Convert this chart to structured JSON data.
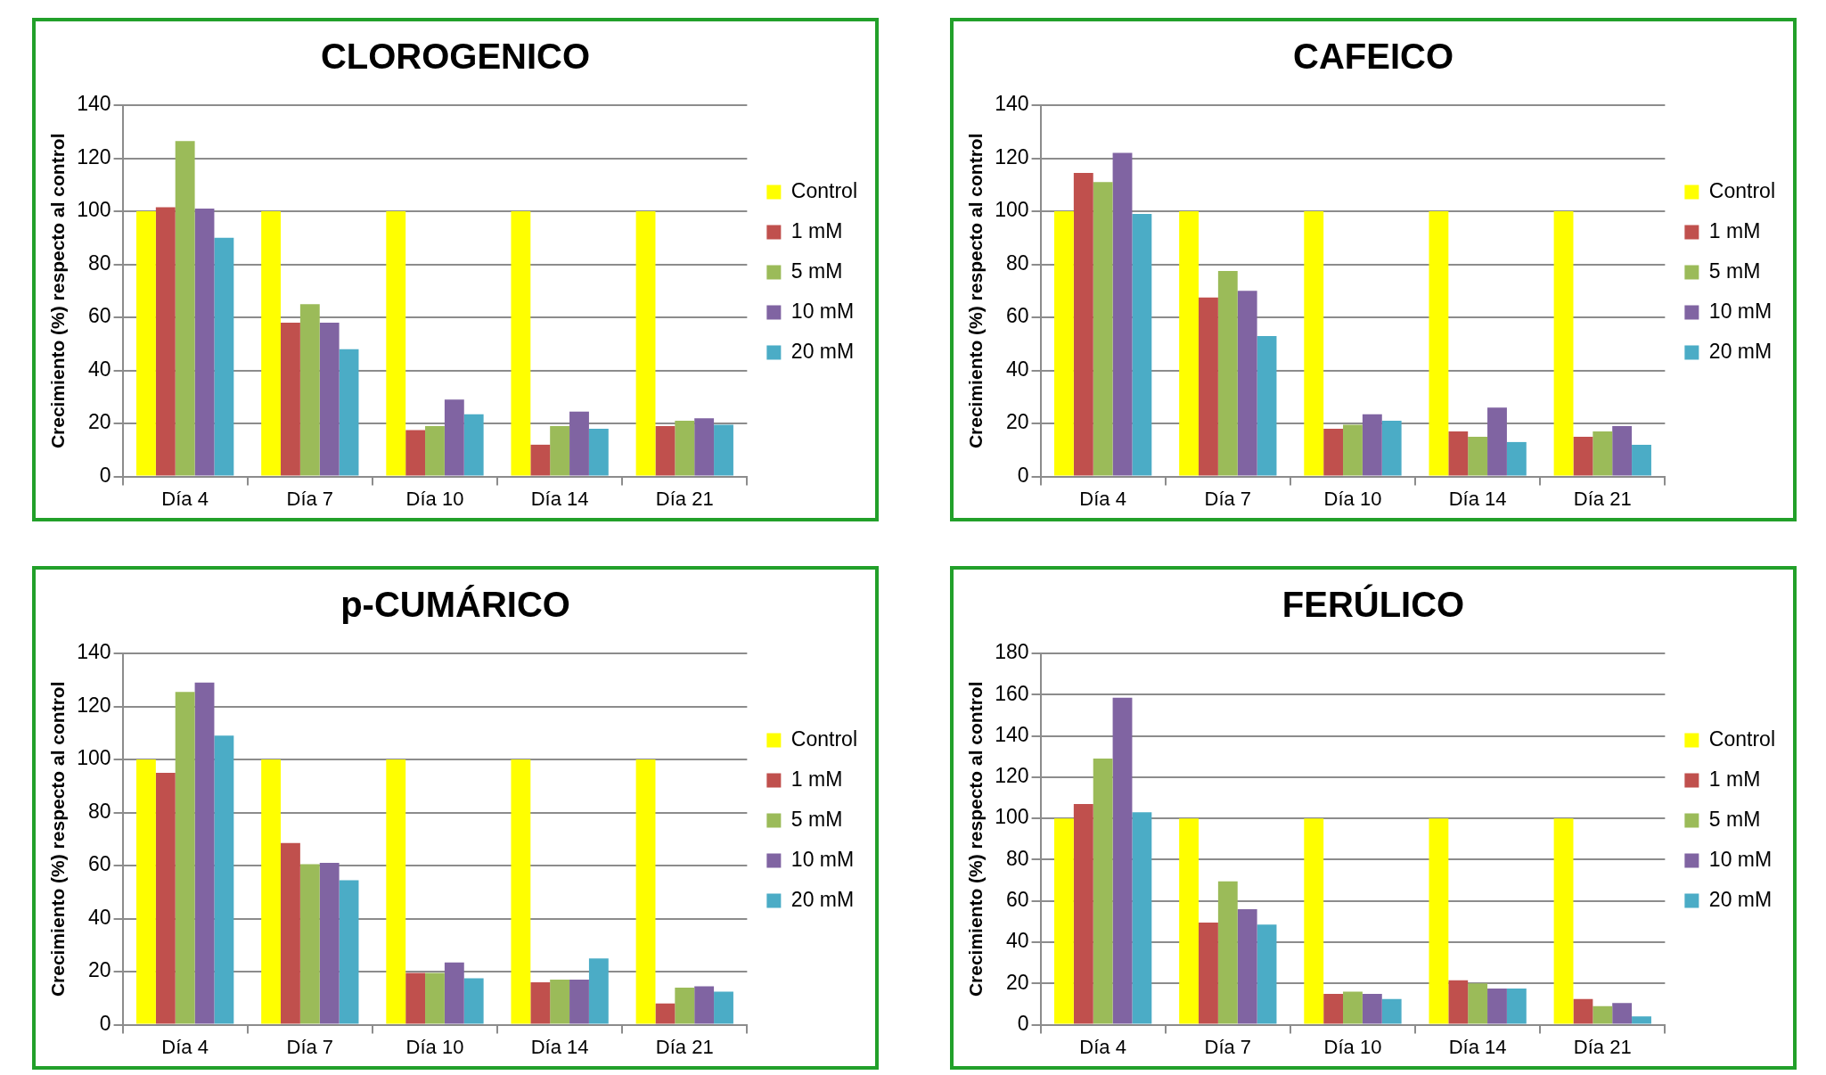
{
  "chart_data": [
    {
      "type": "bar",
      "title": "CLOROGENICO",
      "ylabel": "Crecimiento (%) respecto al control",
      "categories": [
        "Día 4",
        "Día 7",
        "Día 10",
        "Día 14",
        "Día 21"
      ],
      "ylim": [
        0,
        140
      ],
      "yticks": [
        0,
        20,
        40,
        60,
        80,
        100,
        120,
        140
      ],
      "grid": "y",
      "legend": "right",
      "series": [
        {
          "name": "Control",
          "color": "#ffff00",
          "values": [
            100,
            100,
            100,
            100,
            100
          ]
        },
        {
          "name": "1 mM",
          "color": "#c0504d",
          "values": [
            101.5,
            58,
            17.5,
            12,
            19
          ]
        },
        {
          "name": "5 mM",
          "color": "#9bbb59",
          "values": [
            126.5,
            65,
            19,
            19,
            21
          ]
        },
        {
          "name": "10 mM",
          "color": "#8064a2",
          "values": [
            101,
            58,
            29,
            24.5,
            22
          ]
        },
        {
          "name": "20 mM",
          "color": "#4bacc6",
          "values": [
            90,
            48,
            23.5,
            18,
            19.5
          ]
        }
      ]
    },
    {
      "type": "bar",
      "title": "CAFEICO",
      "ylabel": "Crecimiento (%) respecto al control",
      "categories": [
        "Día 4",
        "Día 7",
        "Día 10",
        "Día 14",
        "Día 21"
      ],
      "ylim": [
        0,
        140
      ],
      "yticks": [
        0,
        20,
        40,
        60,
        80,
        100,
        120,
        140
      ],
      "grid": "y",
      "legend": "right",
      "series": [
        {
          "name": "Control",
          "color": "#ffff00",
          "values": [
            100,
            100,
            100,
            100,
            100
          ]
        },
        {
          "name": "1 mM",
          "color": "#c0504d",
          "values": [
            114.5,
            67.5,
            18,
            17,
            15
          ]
        },
        {
          "name": "5 mM",
          "color": "#9bbb59",
          "values": [
            111,
            77.5,
            19.5,
            15,
            17
          ]
        },
        {
          "name": "10 mM",
          "color": "#8064a2",
          "values": [
            122,
            70,
            23.5,
            26,
            19
          ]
        },
        {
          "name": "20 mM",
          "color": "#4bacc6",
          "values": [
            99,
            53,
            21,
            13,
            12
          ]
        }
      ]
    },
    {
      "type": "bar",
      "title": "p-CUMÁRICO",
      "ylabel": "Crecimiento (%) respecto al control",
      "categories": [
        "Día 4",
        "Día 7",
        "Día 10",
        "Día 14",
        "Día 21"
      ],
      "ylim": [
        0,
        140
      ],
      "yticks": [
        0,
        20,
        40,
        60,
        80,
        100,
        120,
        140
      ],
      "grid": "y",
      "legend": "right",
      "series": [
        {
          "name": "Control",
          "color": "#ffff00",
          "values": [
            100,
            100,
            100,
            100,
            100
          ]
        },
        {
          "name": "1 mM",
          "color": "#c0504d",
          "values": [
            95,
            68.5,
            19.5,
            16,
            8
          ]
        },
        {
          "name": "5 mM",
          "color": "#9bbb59",
          "values": [
            125.5,
            60.5,
            19.5,
            17,
            14
          ]
        },
        {
          "name": "10 mM",
          "color": "#8064a2",
          "values": [
            129,
            61,
            23.5,
            17,
            14.5
          ]
        },
        {
          "name": "20 mM",
          "color": "#4bacc6",
          "values": [
            109,
            54.5,
            17.5,
            25,
            12.5
          ]
        }
      ]
    },
    {
      "type": "bar",
      "title": "FERÚLICO",
      "ylabel": "Crecimiento (%) respecto al control",
      "categories": [
        "Día 4",
        "Día 7",
        "Día 10",
        "Día 14",
        "Día 21"
      ],
      "ylim": [
        0,
        180
      ],
      "yticks": [
        0,
        20,
        40,
        60,
        80,
        100,
        120,
        140,
        160,
        180
      ],
      "grid": "y",
      "legend": "right",
      "series": [
        {
          "name": "Control",
          "color": "#ffff00",
          "values": [
            100,
            100,
            100,
            100,
            100
          ]
        },
        {
          "name": "1 mM",
          "color": "#c0504d",
          "values": [
            107,
            49.5,
            15,
            21.5,
            12.5
          ]
        },
        {
          "name": "5 mM",
          "color": "#9bbb59",
          "values": [
            129,
            69.5,
            16,
            20,
            9
          ]
        },
        {
          "name": "10 mM",
          "color": "#8064a2",
          "values": [
            158.5,
            56,
            15,
            17.5,
            10.5
          ]
        },
        {
          "name": "20 mM",
          "color": "#4bacc6",
          "values": [
            103,
            48.5,
            12.5,
            17.5,
            4
          ]
        }
      ]
    }
  ]
}
